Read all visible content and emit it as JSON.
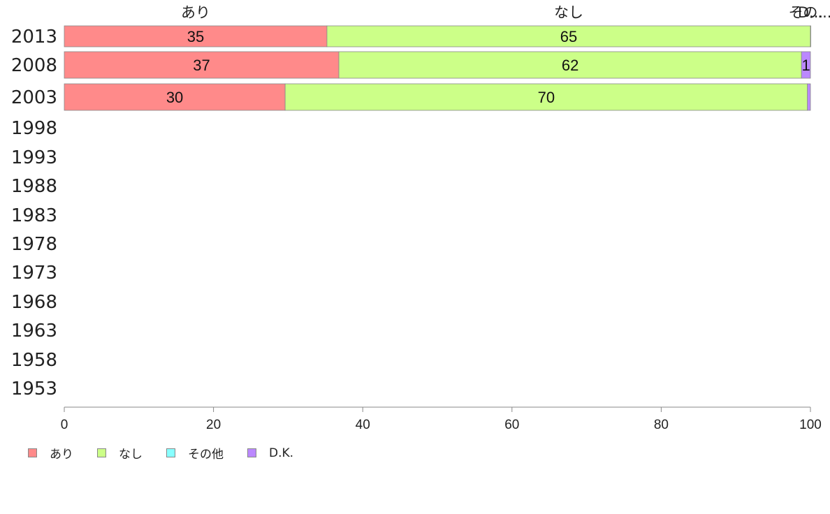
{
  "chart_data": {
    "type": "bar",
    "orientation": "horizontal",
    "stacked": true,
    "categories": [
      "2013",
      "2008",
      "2003",
      "1998",
      "1993",
      "1988",
      "1983",
      "1978",
      "1973",
      "1968",
      "1963",
      "1958",
      "1953"
    ],
    "series": [
      {
        "name": "あり",
        "color": "#ff8a8a",
        "values": [
          35.2,
          36.8,
          29.6,
          null,
          null,
          null,
          null,
          null,
          null,
          null,
          null,
          null,
          null
        ],
        "labels": [
          "35",
          "37",
          "30",
          "",
          "",
          "",
          "",
          "",
          "",
          "",
          "",
          "",
          ""
        ]
      },
      {
        "name": "なし",
        "color": "#ccff88",
        "values": [
          64.8,
          62.0,
          70.0,
          null,
          null,
          null,
          null,
          null,
          null,
          null,
          null,
          null,
          null
        ],
        "labels": [
          "65",
          "62",
          "70",
          "",
          "",
          "",
          "",
          "",
          "",
          "",
          "",
          "",
          ""
        ]
      },
      {
        "name": "その他",
        "color": "#88ffff",
        "values": [
          0.0,
          0.0,
          0.0,
          null,
          null,
          null,
          null,
          null,
          null,
          null,
          null,
          null,
          null
        ],
        "labels": [
          "",
          "",
          "",
          "",
          "",
          "",
          "",
          "",
          "",
          "",
          "",
          "",
          ""
        ]
      },
      {
        "name": "D.K.",
        "color": "#bb88ff",
        "values": [
          0.05,
          1.2,
          0.4,
          null,
          null,
          null,
          null,
          null,
          null,
          null,
          null,
          null,
          null
        ],
        "labels": [
          "",
          "1",
          "",
          "",
          "",
          "",
          "",
          "",
          "",
          "",
          "",
          "",
          ""
        ]
      }
    ],
    "top_labels": [
      {
        "text": "あり",
        "value": 17.6
      },
      {
        "text": "なし",
        "value": 67.6
      },
      {
        "text": "その...",
        "value": 99.95
      },
      {
        "text": "D...",
        "value": 100.0
      }
    ],
    "xlim": [
      0,
      100
    ],
    "xticks": [
      0,
      20,
      40,
      60,
      80,
      100
    ],
    "legend": {
      "position": "bottom-left",
      "entries": [
        "あり",
        "なし",
        "その他",
        "D.K."
      ]
    },
    "grid": false
  }
}
